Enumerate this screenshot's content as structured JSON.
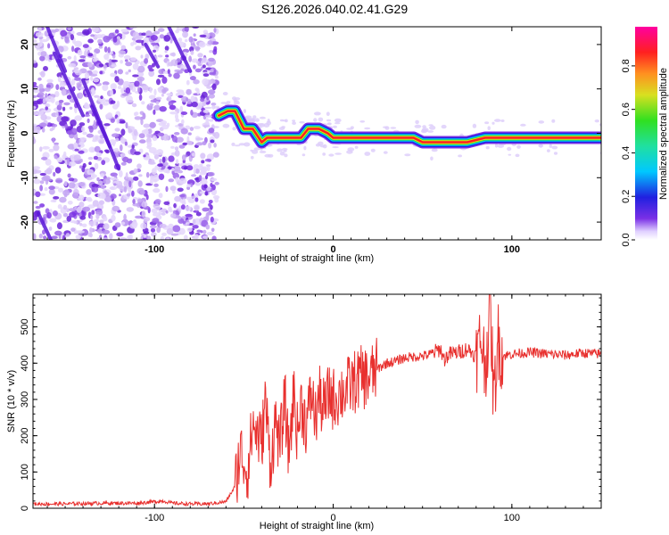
{
  "title": "S126.2026.040.02.41.G29",
  "chart_data": [
    {
      "type": "heatmap",
      "xlabel": "Height of straight line (km)",
      "ylabel": "Frequency (Hz)",
      "xlim": [
        -168,
        150
      ],
      "ylim": [
        -24,
        24
      ],
      "x_ticks": [
        -100,
        0,
        100
      ],
      "y_ticks": [
        -20,
        -10,
        0,
        10,
        20
      ],
      "noise_region_x": [
        -168,
        -65
      ],
      "ridge": [
        {
          "x": -64,
          "y": 4
        },
        {
          "x": -59,
          "y": 5
        },
        {
          "x": -55,
          "y": 5
        },
        {
          "x": -50,
          "y": 1
        },
        {
          "x": -45,
          "y": 1
        },
        {
          "x": -40,
          "y": -2
        },
        {
          "x": -37,
          "y": -1
        },
        {
          "x": -33,
          "y": -1
        },
        {
          "x": -28,
          "y": -1
        },
        {
          "x": -22,
          "y": -1
        },
        {
          "x": -18,
          "y": -1
        },
        {
          "x": -14,
          "y": 1
        },
        {
          "x": -8,
          "y": 1
        },
        {
          "x": -3,
          "y": 0
        },
        {
          "x": 0,
          "y": -1
        },
        {
          "x": 10,
          "y": -1
        },
        {
          "x": 20,
          "y": -1
        },
        {
          "x": 30,
          "y": -1
        },
        {
          "x": 45,
          "y": -1
        },
        {
          "x": 50,
          "y": -2
        },
        {
          "x": 60,
          "y": -2
        },
        {
          "x": 75,
          "y": -2
        },
        {
          "x": 85,
          "y": -1
        },
        {
          "x": 90,
          "y": -1
        },
        {
          "x": 100,
          "y": -1
        },
        {
          "x": 120,
          "y": -1
        },
        {
          "x": 150,
          "y": -1
        }
      ]
    },
    {
      "type": "line",
      "xlabel": "Height of straight line (km)",
      "ylabel": "SNR (10 * v/v)",
      "xlim": [
        -168,
        150
      ],
      "ylim": [
        0,
        590
      ],
      "x_ticks": [
        -100,
        0,
        100
      ],
      "y_ticks": [
        0,
        100,
        200,
        300,
        400,
        500
      ],
      "series": [
        {
          "name": "SNR",
          "color": "#e8302e",
          "x": [
            -168,
            -150,
            -130,
            -110,
            -95,
            -90,
            -80,
            -70,
            -60,
            -55,
            -52,
            -48,
            -45,
            -40,
            -38,
            -35,
            -32,
            -30,
            -27,
            -25,
            -22,
            -20,
            -18,
            -15,
            -12,
            -10,
            -8,
            -5,
            -2,
            0,
            5,
            10,
            15,
            20,
            25,
            30,
            35,
            40,
            50,
            55,
            60,
            62,
            65,
            70,
            75,
            80,
            83,
            85,
            88,
            90,
            92,
            95,
            100,
            110,
            120,
            130,
            140,
            150
          ],
          "y": [
            12,
            12,
            14,
            14,
            20,
            14,
            12,
            12,
            18,
            60,
            160,
            100,
            230,
            180,
            300,
            120,
            250,
            160,
            300,
            150,
            320,
            200,
            290,
            230,
            320,
            240,
            310,
            270,
            320,
            300,
            320,
            340,
            360,
            360,
            385,
            400,
            405,
            415,
            420,
            425,
            440,
            410,
            425,
            430,
            440,
            420,
            470,
            390,
            550,
            280,
            470,
            420,
            425,
            430,
            425,
            422,
            428,
            425
          ]
        }
      ]
    }
  ],
  "colorbar": {
    "label": "Normalized spectral amplitude",
    "ticks": [
      "0.0",
      "0.2",
      "0.4",
      "0.6",
      "0.8"
    ]
  }
}
